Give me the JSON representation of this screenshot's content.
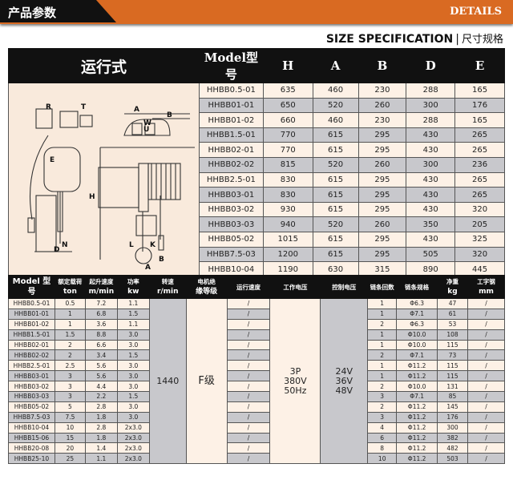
{
  "banner": {
    "title": "产品参数",
    "right": "DETAILS"
  },
  "size_header": {
    "en": "SIZE SPECIFICATION",
    "cn": "尺寸规格"
  },
  "size_table": {
    "type_label": "运行式",
    "columns": [
      "Model型号",
      "H",
      "A",
      "B",
      "D",
      "E"
    ],
    "rows": [
      [
        "HHBB0.5-01",
        "635",
        "460",
        "230",
        "288",
        "165"
      ],
      [
        "HHBB01-01",
        "650",
        "520",
        "260",
        "300",
        "176"
      ],
      [
        "HHBB01-02",
        "660",
        "460",
        "230",
        "288",
        "165"
      ],
      [
        "HHBB1.5-01",
        "770",
        "615",
        "295",
        "430",
        "265"
      ],
      [
        "HHBB02-01",
        "770",
        "615",
        "295",
        "430",
        "265"
      ],
      [
        "HHBB02-02",
        "815",
        "520",
        "260",
        "300",
        "236"
      ],
      [
        "HHBB2.5-01",
        "830",
        "615",
        "295",
        "430",
        "265"
      ],
      [
        "HHBB03-01",
        "830",
        "615",
        "295",
        "430",
        "265"
      ],
      [
        "HHBB03-02",
        "930",
        "615",
        "295",
        "430",
        "320"
      ],
      [
        "HHBB03-03",
        "940",
        "520",
        "260",
        "350",
        "205"
      ],
      [
        "HHBB05-02",
        "1015",
        "615",
        "295",
        "430",
        "325"
      ],
      [
        "HHBB7.5-03",
        "1200",
        "615",
        "295",
        "505",
        "320"
      ],
      [
        "HHBB10-04",
        "1190",
        "630",
        "315",
        "890",
        "445"
      ]
    ]
  },
  "diagram": {
    "labels": [
      "R",
      "T",
      "A",
      "B",
      "W",
      "U",
      "E",
      "H",
      "D",
      "N",
      "L",
      "K",
      "A",
      "B"
    ]
  },
  "spec_table": {
    "columns": [
      {
        "l1": "Model 型号",
        "l2": ""
      },
      {
        "l1": "额定载荷",
        "l2": "ton"
      },
      {
        "l1": "起升速度",
        "l2": "m/min"
      },
      {
        "l1": "功率",
        "l2": "kw"
      },
      {
        "l1": "转速",
        "l2": "r/min"
      },
      {
        "l1": "电机绝",
        "l2": "缘等级"
      },
      {
        "l1": "运行速度",
        "l2": ""
      },
      {
        "l1": "工作电压",
        "l2": ""
      },
      {
        "l1": "控制电压",
        "l2": ""
      },
      {
        "l1": "链条回数",
        "l2": ""
      },
      {
        "l1": "链条规格",
        "l2": ""
      },
      {
        "l1": "净重",
        "l2": "kg"
      },
      {
        "l1": "工字钢",
        "l2": "mm"
      }
    ],
    "merged": {
      "speed": "1440",
      "insulation": "F级",
      "voltage": [
        "3P",
        "380V",
        "50Hz"
      ],
      "control": [
        "24V",
        "36V",
        "48V"
      ]
    },
    "rows": [
      [
        "HHBB0.5-01",
        "0.5",
        "7.2",
        "1.1",
        "/",
        "1",
        "Φ6.3",
        "47",
        "/"
      ],
      [
        "HHBB01-01",
        "1",
        "6.8",
        "1.5",
        "/",
        "1",
        "Φ7.1",
        "61",
        "/"
      ],
      [
        "HHBB01-02",
        "1",
        "3.6",
        "1.1",
        "/",
        "2",
        "Φ6.3",
        "53",
        "/"
      ],
      [
        "HHBB1.5-01",
        "1.5",
        "8.8",
        "3.0",
        "/",
        "1",
        "Φ10.0",
        "108",
        "/"
      ],
      [
        "HHBB02-01",
        "2",
        "6.6",
        "3.0",
        "/",
        "1",
        "Φ10.0",
        "115",
        "/"
      ],
      [
        "HHBB02-02",
        "2",
        "3.4",
        "1.5",
        "/",
        "2",
        "Φ7.1",
        "73",
        "/"
      ],
      [
        "HHBB2.5-01",
        "2.5",
        "5.6",
        "3.0",
        "/",
        "1",
        "Φ11.2",
        "115",
        "/"
      ],
      [
        "HHBB03-01",
        "3",
        "5.6",
        "3.0",
        "/",
        "1",
        "Φ11.2",
        "115",
        "/"
      ],
      [
        "HHBB03-02",
        "3",
        "4.4",
        "3.0",
        "/",
        "2",
        "Φ10.0",
        "131",
        "/"
      ],
      [
        "HHBB03-03",
        "3",
        "2.2",
        "1.5",
        "/",
        "3",
        "Φ7.1",
        "85",
        "/"
      ],
      [
        "HHBB05-02",
        "5",
        "2.8",
        "3.0",
        "/",
        "2",
        "Φ11.2",
        "145",
        "/"
      ],
      [
        "HHBB7.5-03",
        "7.5",
        "1.8",
        "3.0",
        "/",
        "3",
        "Φ11.2",
        "176",
        "/"
      ],
      [
        "HHBB10-04",
        "10",
        "2.8",
        "2x3.0",
        "/",
        "4",
        "Φ11.2",
        "300",
        "/"
      ],
      [
        "HHBB15-06",
        "15",
        "1.8",
        "2x3.0",
        "/",
        "6",
        "Φ11.2",
        "382",
        "/"
      ],
      [
        "HHBB20-08",
        "20",
        "1.4",
        "2x3.0",
        "/",
        "8",
        "Φ11.2",
        "482",
        "/"
      ],
      [
        "HHBB25-10",
        "25",
        "1.1",
        "2x3.0",
        "/",
        "10",
        "Φ11.2",
        "503",
        "/"
      ]
    ]
  }
}
